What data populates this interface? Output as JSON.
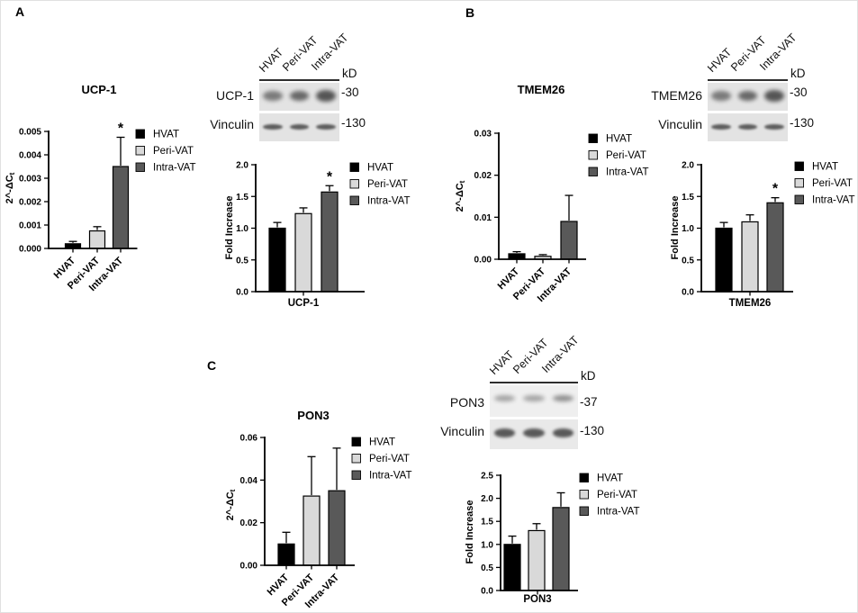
{
  "series_colors": [
    "#000000",
    "#d9d9d9",
    "#595959"
  ],
  "legend_labels": [
    "HVAT",
    "Peri-VAT",
    "Intra-VAT"
  ],
  "panels": [
    {
      "label": "A",
      "blot": {
        "lanes": [
          "HVAT",
          "Peri-VAT",
          "Intra-VAT"
        ],
        "kd": "kD",
        "rows": [
          {
            "protein": "UCP-1",
            "marker": "-30"
          },
          {
            "protein": "Vinculin",
            "marker": "-130"
          }
        ]
      }
    },
    {
      "label": "B",
      "blot": {
        "lanes": [
          "HVAT",
          "Peri-VAT",
          "Intra-VAT"
        ],
        "kd": "kD",
        "rows": [
          {
            "protein": "TMEM26",
            "marker": "-30"
          },
          {
            "protein": "Vinculin",
            "marker": "-130"
          }
        ]
      }
    },
    {
      "label": "C",
      "blot": {
        "lanes": [
          "HVAT",
          "Peri-VAT",
          "Intra-VAT"
        ],
        "kd": "kD",
        "rows": [
          {
            "protein": "PON3",
            "marker": "-37"
          },
          {
            "protein": "Vinculin",
            "marker": "-130"
          }
        ]
      }
    }
  ],
  "chart_data": [
    {
      "id": "A-qpcr",
      "type": "bar",
      "title": "UCP-1",
      "ylabel": "2^-ΔC",
      "ylabel_sub": "t",
      "categories": [
        "HVAT",
        "Peri-VAT",
        "Intra-VAT"
      ],
      "values": [
        0.0002,
        0.00075,
        0.0035
      ],
      "errors": [
        0.0001,
        0.00018,
        0.00125
      ],
      "sig": [
        "",
        "",
        "*"
      ],
      "ylim": [
        0,
        0.005
      ],
      "yticks": [
        0,
        0.001,
        0.002,
        0.003,
        0.004,
        0.005
      ],
      "ytick_labels": [
        "0.000",
        "0.001",
        "0.002",
        "0.003",
        "0.004",
        "0.005"
      ],
      "legend": [
        "HVAT",
        "Peri-VAT",
        "Intra-VAT"
      ],
      "legend_position": "right",
      "grid": false
    },
    {
      "id": "A-fold",
      "type": "bar",
      "xlabel": "UCP-1",
      "ylabel": "Fold Increase",
      "categories": [
        "HVAT",
        "Peri-VAT",
        "Intra-VAT"
      ],
      "values": [
        1.0,
        1.23,
        1.57
      ],
      "errors": [
        0.09,
        0.09,
        0.1
      ],
      "sig": [
        "",
        "",
        "*"
      ],
      "ylim": [
        0,
        2.0
      ],
      "yticks": [
        0,
        0.5,
        1.0,
        1.5,
        2.0
      ],
      "ytick_labels": [
        "0.0",
        "0.5",
        "1.0",
        "1.5",
        "2.0"
      ],
      "legend": [
        "HVAT",
        "Peri-VAT",
        "Intra-VAT"
      ],
      "legend_position": "right",
      "grid": false
    },
    {
      "id": "B-qpcr",
      "type": "bar",
      "title": "TMEM26",
      "ylabel": "2^-ΔC",
      "ylabel_sub": "t",
      "categories": [
        "HVAT",
        "Peri-VAT",
        "Intra-VAT"
      ],
      "values": [
        0.0013,
        0.0007,
        0.009
      ],
      "errors": [
        0.0005,
        0.0004,
        0.0062
      ],
      "sig": [
        "",
        "",
        ""
      ],
      "ylim": [
        0,
        0.03
      ],
      "yticks": [
        0,
        0.01,
        0.02,
        0.03
      ],
      "ytick_labels": [
        "0.00",
        "0.01",
        "0.02",
        "0.03"
      ],
      "legend": [
        "HVAT",
        "Peri-VAT",
        "Intra-VAT"
      ],
      "legend_position": "right",
      "grid": false
    },
    {
      "id": "B-fold",
      "type": "bar",
      "xlabel": "TMEM26",
      "ylabel": "Fold Increase",
      "categories": [
        "HVAT",
        "Peri-VAT",
        "Intra-VAT"
      ],
      "values": [
        1.0,
        1.1,
        1.4
      ],
      "errors": [
        0.09,
        0.11,
        0.08
      ],
      "sig": [
        "",
        "",
        "*"
      ],
      "ylim": [
        0,
        2.0
      ],
      "yticks": [
        0,
        0.5,
        1.0,
        1.5,
        2.0
      ],
      "ytick_labels": [
        "0.0",
        "0.5",
        "1.0",
        "1.5",
        "2.0"
      ],
      "legend": [
        "HVAT",
        "Peri-VAT",
        "Intra-VAT"
      ],
      "legend_position": "right",
      "grid": false
    },
    {
      "id": "C-qpcr",
      "type": "bar",
      "title": "PON3",
      "ylabel": "2^-ΔC",
      "ylabel_sub": "t",
      "categories": [
        "HVAT",
        "Peri-VAT",
        "Intra-VAT"
      ],
      "values": [
        0.01,
        0.0325,
        0.035
      ],
      "errors": [
        0.0055,
        0.0185,
        0.02
      ],
      "sig": [
        "",
        "",
        ""
      ],
      "ylim": [
        0,
        0.06
      ],
      "yticks": [
        0,
        0.02,
        0.04,
        0.06
      ],
      "ytick_labels": [
        "0.00",
        "0.02",
        "0.04",
        "0.06"
      ],
      "legend": [
        "HVAT",
        "Peri-VAT",
        "Intra-VAT"
      ],
      "legend_position": "right",
      "grid": false
    },
    {
      "id": "C-fold",
      "type": "bar",
      "xlabel": "PON3",
      "ylabel": "Fold Increase",
      "categories": [
        "HVAT",
        "Peri-VAT",
        "Intra-VAT"
      ],
      "values": [
        1.0,
        1.3,
        1.8
      ],
      "errors": [
        0.18,
        0.15,
        0.32
      ],
      "sig": [
        "",
        "",
        ""
      ],
      "ylim": [
        0,
        2.5
      ],
      "yticks": [
        0,
        0.5,
        1.0,
        1.5,
        2.0,
        2.5
      ],
      "ytick_labels": [
        "0.0",
        "0.5",
        "1.0",
        "1.5",
        "2.0",
        "2.5"
      ],
      "legend": [
        "HVAT",
        "Peri-VAT",
        "Intra-VAT"
      ],
      "legend_position": "right",
      "grid": false
    }
  ]
}
